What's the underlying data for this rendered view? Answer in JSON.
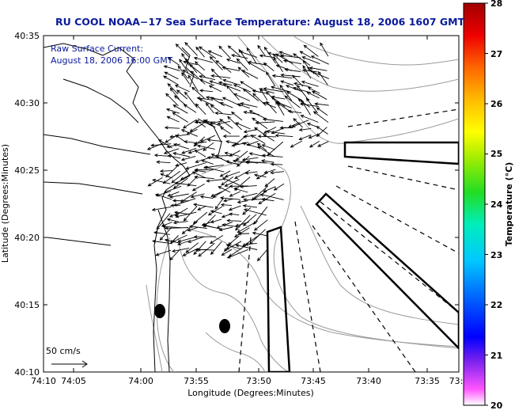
{
  "title": "RU COOL  NOAA−17  Sea Surface Temperature:  August 18, 2006 1607 GMT",
  "inset": {
    "line1": "Raw Surface Current:",
    "line2": "August 18, 2006 16:00 GMT"
  },
  "scale_label": "50 cm/s",
  "axes": {
    "xlabel": "Longitude (Degrees:Minutes)",
    "ylabel": "Latitude (Degrees:Minutes)",
    "xticks": [
      "74:10",
      "74:05",
      "74:00",
      "73:55",
      "73:50",
      "73:45",
      "73:40",
      "73:35",
      "73:3"
    ],
    "yticks": [
      "40:35",
      "40:30",
      "40:25",
      "40:20",
      "40:15",
      "40:10"
    ]
  },
  "colorbar": {
    "label": "Temperature (°C)",
    "ticks": [
      "28",
      "27",
      "26",
      "25",
      "24",
      "23",
      "22",
      "21",
      "20"
    ],
    "min": 20,
    "max": 28
  },
  "colors": {
    "title": "#0a1a9a",
    "land_outline": "#000000",
    "bathymetry": "#9a9a9a"
  }
}
